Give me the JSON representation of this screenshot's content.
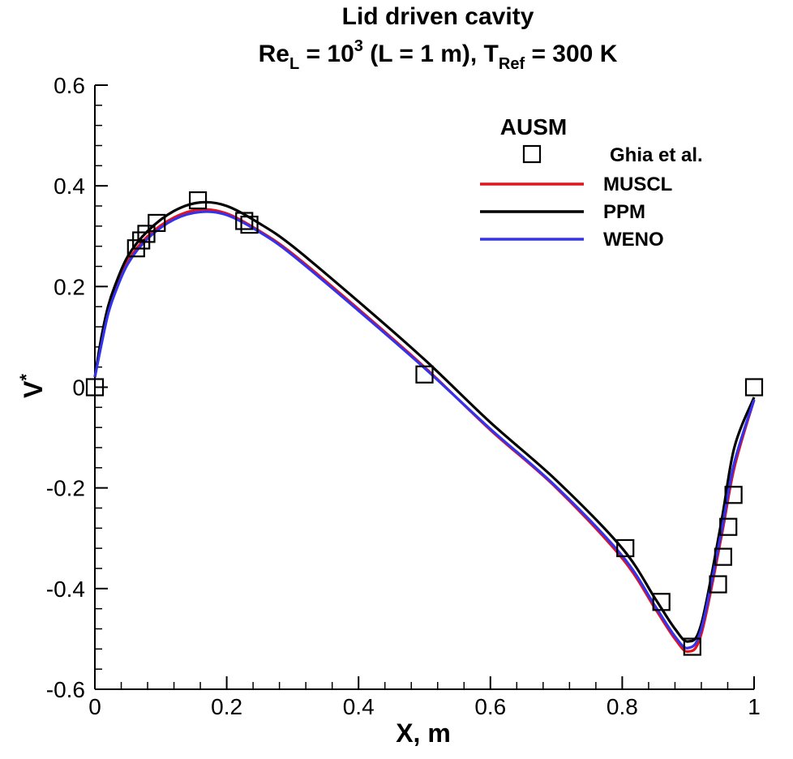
{
  "chart_data": {
    "type": "line",
    "title": "Lid driven cavity",
    "subtitle": {
      "re_base": "Re",
      "re_sub": "L",
      "re_mid": " = 10",
      "re_sup": "3",
      "l_part": " (L = 1 m), T",
      "t_sub": "Ref",
      "t_end": " = 300 K"
    },
    "xlabel": "X, m",
    "ylabel": {
      "base": "V",
      "sup": "*"
    },
    "xlim": [
      0,
      1
    ],
    "ylim": [
      -0.6,
      0.6
    ],
    "xticks": [
      0,
      0.2,
      0.4,
      0.6,
      0.8,
      1
    ],
    "xtick_labels": [
      "0",
      "0.2",
      "0.4",
      "0.6",
      "0.8",
      "1"
    ],
    "yticks": [
      -0.6,
      -0.4,
      -0.2,
      0,
      0.2,
      0.4,
      0.6
    ],
    "ytick_labels": [
      "-0.6",
      "-0.4",
      "-0.2",
      "0",
      "0.2",
      "0.4",
      "0.6"
    ],
    "grid": false,
    "legend": {
      "title": "AUSM",
      "placement": "top-right",
      "entries": [
        "Ghia et al.",
        "MUSCL",
        "PPM",
        "WENO"
      ]
    },
    "markers": {
      "name": "Ghia et al.",
      "style": "open-square",
      "color": "#000000",
      "points": [
        [
          0.0,
          0.0
        ],
        [
          0.0625,
          0.2759
        ],
        [
          0.0703,
          0.2915
        ],
        [
          0.0781,
          0.3046
        ],
        [
          0.0938,
          0.3263
        ],
        [
          0.1563,
          0.3712
        ],
        [
          0.2266,
          0.3302
        ],
        [
          0.2344,
          0.3228
        ],
        [
          0.5,
          0.0253
        ],
        [
          0.8047,
          -0.3197
        ],
        [
          0.8594,
          -0.4265
        ],
        [
          0.9063,
          -0.5155
        ],
        [
          0.9453,
          -0.3915
        ],
        [
          0.9531,
          -0.3369
        ],
        [
          0.9609,
          -0.2774
        ],
        [
          0.9688,
          -0.2139
        ],
        [
          1.0,
          0.0
        ]
      ]
    },
    "series": [
      {
        "name": "MUSCL",
        "color": "#e8101a",
        "x": [
          0,
          0.01,
          0.02,
          0.03,
          0.05,
          0.08,
          0.12,
          0.16,
          0.2,
          0.25,
          0.3,
          0.4,
          0.5,
          0.6,
          0.7,
          0.8,
          0.85,
          0.88,
          0.9,
          0.92,
          0.95,
          0.97,
          1.0
        ],
        "y": [
          0.02,
          0.09,
          0.15,
          0.19,
          0.25,
          0.3,
          0.337,
          0.353,
          0.345,
          0.31,
          0.265,
          0.155,
          0.04,
          -0.085,
          -0.2,
          -0.34,
          -0.44,
          -0.5,
          -0.525,
          -0.49,
          -0.3,
          -0.16,
          -0.025
        ]
      },
      {
        "name": "PPM",
        "color": "#000000",
        "x": [
          0,
          0.01,
          0.02,
          0.03,
          0.05,
          0.08,
          0.12,
          0.16,
          0.2,
          0.25,
          0.3,
          0.4,
          0.5,
          0.6,
          0.7,
          0.8,
          0.85,
          0.88,
          0.9,
          0.92,
          0.95,
          0.97,
          1.0
        ],
        "y": [
          0.02,
          0.1,
          0.16,
          0.2,
          0.26,
          0.31,
          0.35,
          0.367,
          0.36,
          0.325,
          0.28,
          0.17,
          0.055,
          -0.07,
          -0.185,
          -0.32,
          -0.42,
          -0.48,
          -0.505,
          -0.47,
          -0.27,
          -0.12,
          -0.02
        ]
      },
      {
        "name": "WENO",
        "color": "#3333ee",
        "x": [
          0,
          0.01,
          0.02,
          0.03,
          0.05,
          0.08,
          0.12,
          0.16,
          0.2,
          0.25,
          0.3,
          0.4,
          0.5,
          0.6,
          0.7,
          0.8,
          0.85,
          0.88,
          0.9,
          0.92,
          0.95,
          0.97,
          1.0
        ],
        "y": [
          0.02,
          0.085,
          0.145,
          0.185,
          0.245,
          0.295,
          0.333,
          0.348,
          0.342,
          0.308,
          0.262,
          0.152,
          0.038,
          -0.083,
          -0.198,
          -0.335,
          -0.435,
          -0.495,
          -0.518,
          -0.48,
          -0.29,
          -0.15,
          -0.025
        ]
      }
    ]
  }
}
